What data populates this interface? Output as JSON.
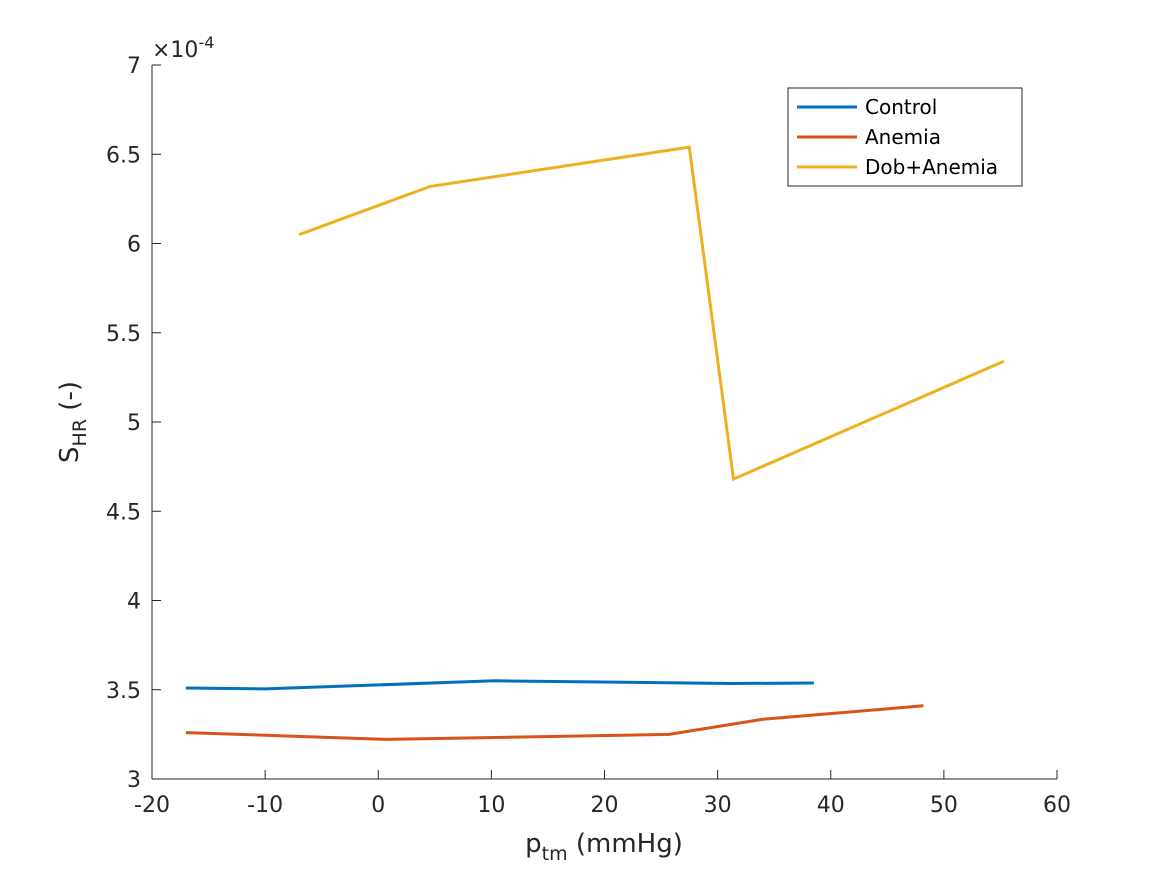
{
  "chart_data": {
    "type": "line",
    "title": "",
    "xlabel": {
      "base": "p",
      "sub": "tm",
      "rest": " (mmHg)"
    },
    "ylabel": {
      "base": "S",
      "sub": "HR",
      "rest": " (-)"
    },
    "y_multiplier": {
      "prefix": "×10",
      "exponent": "-4"
    },
    "xlim": [
      -20,
      60
    ],
    "ylim": [
      3,
      7
    ],
    "xticks": [
      -20,
      -10,
      0,
      10,
      20,
      30,
      40,
      50,
      60
    ],
    "xtick_labels": [
      "-20",
      "-10",
      "0",
      "10",
      "20",
      "30",
      "40",
      "50",
      "60"
    ],
    "yticks": [
      3,
      3.5,
      4,
      4.5,
      5,
      5.5,
      6,
      6.5,
      7
    ],
    "ytick_labels": [
      "3",
      "3.5",
      "4",
      "4.5",
      "5",
      "5.5",
      "6",
      "6.5",
      "7"
    ],
    "grid": false,
    "legend_position": "top-right",
    "series": [
      {
        "name": "Control",
        "color": "#0072BD",
        "x": [
          -17,
          -10,
          10.3,
          31.2,
          38.5
        ],
        "y": [
          3.51,
          3.505,
          3.55,
          3.535,
          3.538
        ]
      },
      {
        "name": "Anemia",
        "color": "#D95319",
        "x": [
          -17,
          0.8,
          25.7,
          34,
          48.2
        ],
        "y": [
          3.26,
          3.222,
          3.25,
          3.335,
          3.41
        ]
      },
      {
        "name": "Dob+Anemia",
        "color": "#EDB120",
        "x": [
          -7,
          4.6,
          27.5,
          31.4,
          55.3
        ],
        "y": [
          6.05,
          6.32,
          6.54,
          4.68,
          5.34
        ]
      }
    ]
  }
}
